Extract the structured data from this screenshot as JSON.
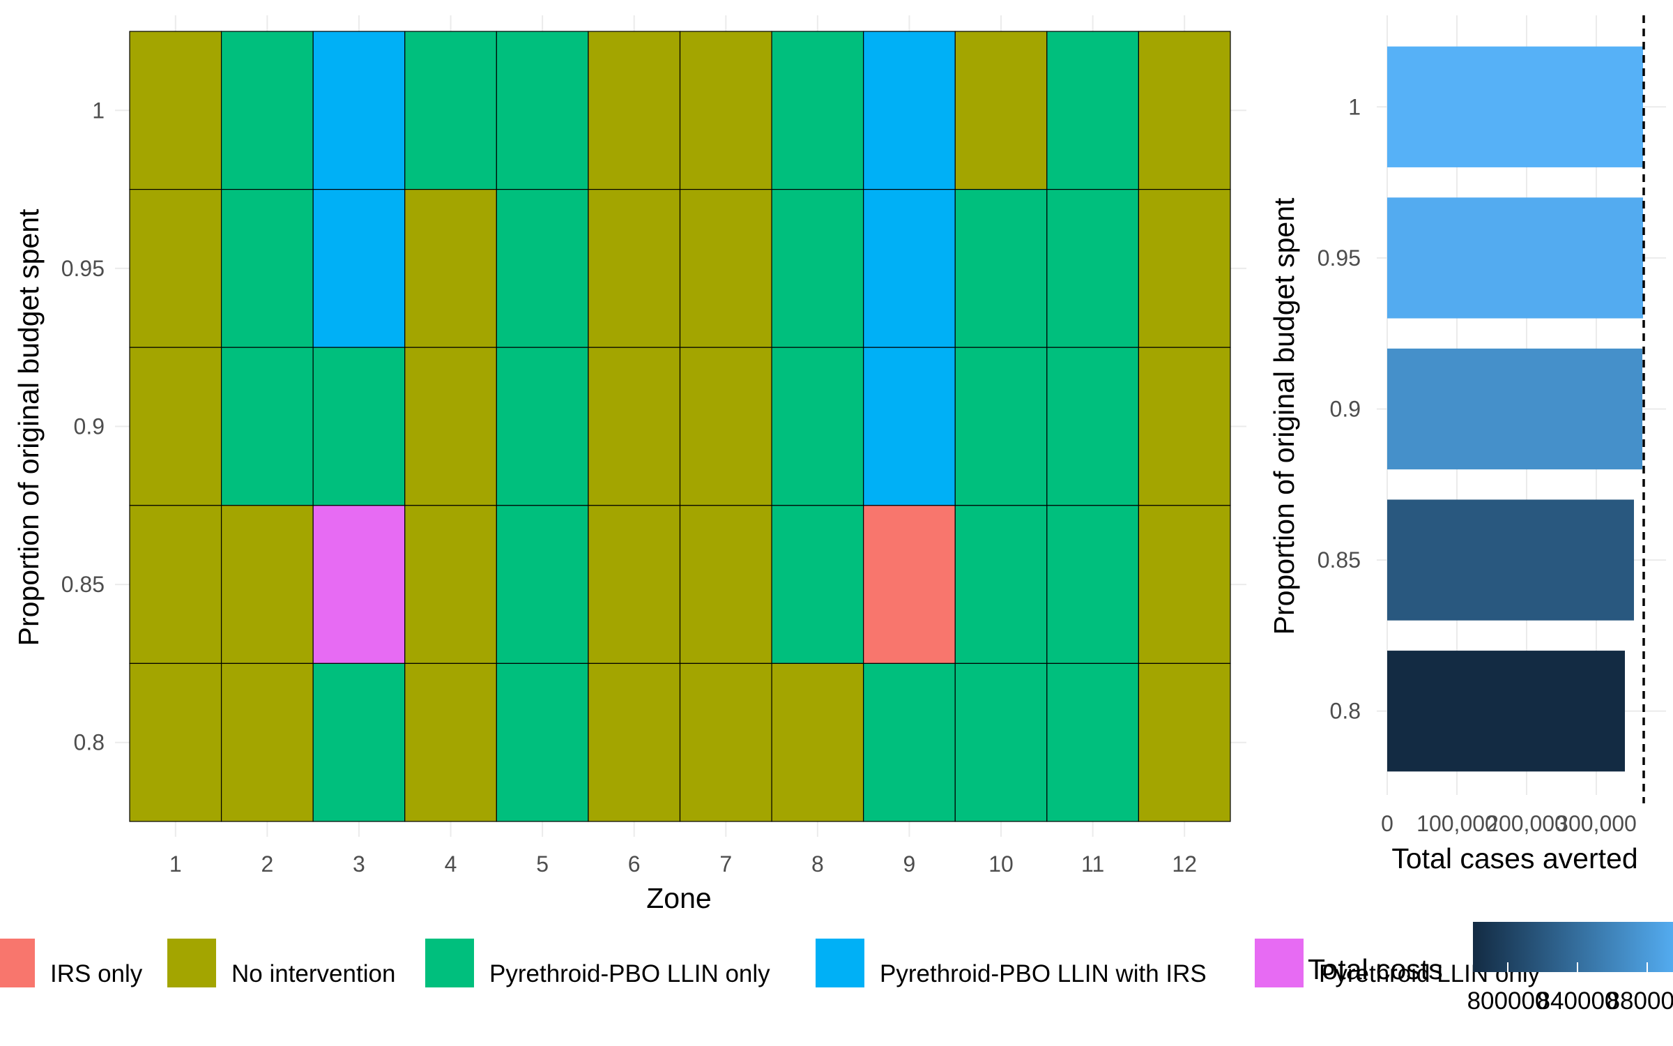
{
  "chart_data": [
    {
      "type": "heatmap",
      "xlabel": "Zone",
      "ylabel": "Proportion of original budget spent",
      "x_categories": [
        "1",
        "2",
        "3",
        "4",
        "5",
        "6",
        "7",
        "8",
        "9",
        "10",
        "11",
        "12"
      ],
      "y_categories": [
        "1",
        "0.95",
        "0.9",
        "0.85",
        "0.8"
      ],
      "cells": [
        [
          "No intervention",
          "Pyrethroid-PBO LLIN only",
          "Pyrethroid-PBO LLIN with IRS",
          "Pyrethroid-PBO LLIN only",
          "Pyrethroid-PBO LLIN only",
          "No intervention",
          "No intervention",
          "Pyrethroid-PBO LLIN only",
          "Pyrethroid-PBO LLIN with IRS",
          "No intervention",
          "Pyrethroid-PBO LLIN only",
          "No intervention"
        ],
        [
          "No intervention",
          "Pyrethroid-PBO LLIN only",
          "Pyrethroid-PBO LLIN with IRS",
          "No intervention",
          "Pyrethroid-PBO LLIN only",
          "No intervention",
          "No intervention",
          "Pyrethroid-PBO LLIN only",
          "Pyrethroid-PBO LLIN with IRS",
          "Pyrethroid-PBO LLIN only",
          "Pyrethroid-PBO LLIN only",
          "No intervention"
        ],
        [
          "No intervention",
          "Pyrethroid-PBO LLIN only",
          "Pyrethroid-PBO LLIN only",
          "No intervention",
          "Pyrethroid-PBO LLIN only",
          "No intervention",
          "No intervention",
          "Pyrethroid-PBO LLIN only",
          "Pyrethroid-PBO LLIN with IRS",
          "Pyrethroid-PBO LLIN only",
          "Pyrethroid-PBO LLIN only",
          "No intervention"
        ],
        [
          "No intervention",
          "No intervention",
          "Pyrethroid LLIN only",
          "No intervention",
          "Pyrethroid-PBO LLIN only",
          "No intervention",
          "No intervention",
          "Pyrethroid-PBO LLIN only",
          "IRS only",
          "Pyrethroid-PBO LLIN only",
          "Pyrethroid-PBO LLIN only",
          "No intervention"
        ],
        [
          "No intervention",
          "No intervention",
          "Pyrethroid-PBO LLIN only",
          "No intervention",
          "Pyrethroid-PBO LLIN only",
          "No intervention",
          "No intervention",
          "No intervention",
          "Pyrethroid-PBO LLIN only",
          "Pyrethroid-PBO LLIN only",
          "Pyrethroid-PBO LLIN only",
          "No intervention"
        ]
      ],
      "legend": [
        {
          "name": "IRS only",
          "color": "#F8766D"
        },
        {
          "name": "No intervention",
          "color": "#A3A500"
        },
        {
          "name": "Pyrethroid-PBO LLIN only",
          "color": "#00BF7D"
        },
        {
          "name": "Pyrethroid-PBO LLIN with IRS",
          "color": "#00B0F6"
        },
        {
          "name": "Pyrethroid LLIN only",
          "color": "#E76BF3"
        }
      ],
      "legend_placement": "bottom"
    },
    {
      "type": "bar",
      "orientation": "horizontal",
      "xlabel": "Total cases averted",
      "ylabel": "Proportion of original budget spent",
      "categories": [
        "1",
        "0.95",
        "0.9",
        "0.85",
        "0.8"
      ],
      "values": [
        367000,
        367000,
        366000,
        354000,
        341000
      ],
      "fill_values": [
        900000,
        895000,
        870000,
        820000,
        780000
      ],
      "xlim": [
        0,
        368000
      ],
      "x_ticks": [
        0,
        100000,
        200000,
        300000
      ],
      "x_tick_labels": [
        "0",
        "100,000",
        "200,000",
        "300,000"
      ],
      "reference_line_x": 368000,
      "color_scale": {
        "title": "Total costs",
        "tick_labels": [
          "800000",
          "840000",
          "880000"
        ],
        "low_color": "#132B43",
        "high_color": "#56B1F7"
      }
    }
  ]
}
